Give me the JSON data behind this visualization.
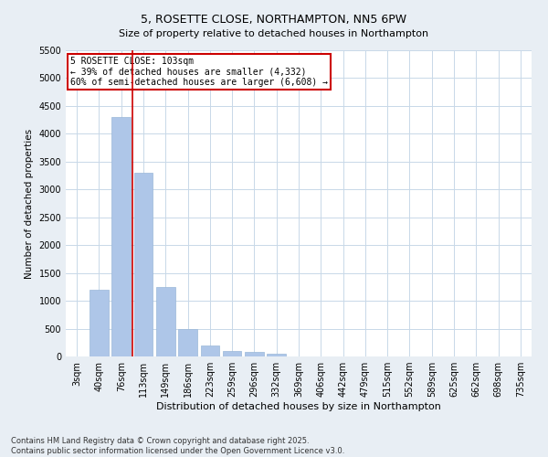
{
  "title": "5, ROSETTE CLOSE, NORTHAMPTON, NN5 6PW",
  "subtitle": "Size of property relative to detached houses in Northampton",
  "xlabel": "Distribution of detached houses by size in Northampton",
  "ylabel": "Number of detached properties",
  "categories": [
    "3sqm",
    "40sqm",
    "76sqm",
    "113sqm",
    "149sqm",
    "186sqm",
    "223sqm",
    "259sqm",
    "296sqm",
    "332sqm",
    "369sqm",
    "406sqm",
    "442sqm",
    "479sqm",
    "515sqm",
    "552sqm",
    "589sqm",
    "625sqm",
    "662sqm",
    "698sqm",
    "735sqm"
  ],
  "values": [
    0,
    1200,
    4300,
    3300,
    1250,
    500,
    200,
    100,
    80,
    50,
    0,
    0,
    0,
    0,
    0,
    0,
    0,
    0,
    0,
    0,
    0
  ],
  "bar_color": "#aec6e8",
  "bar_edge_color": "#9ab8d8",
  "vline_color": "#cc0000",
  "ylim": [
    0,
    5500
  ],
  "yticks": [
    0,
    500,
    1000,
    1500,
    2000,
    2500,
    3000,
    3500,
    4000,
    4500,
    5000,
    5500
  ],
  "annotation_text": "5 ROSETTE CLOSE: 103sqm\n← 39% of detached houses are smaller (4,332)\n60% of semi-detached houses are larger (6,608) →",
  "annotation_box_color": "#cc0000",
  "footer1": "Contains HM Land Registry data © Crown copyright and database right 2025.",
  "footer2": "Contains public sector information licensed under the Open Government Licence v3.0.",
  "bg_color": "#e8eef4",
  "plot_bg_color": "#ffffff",
  "grid_color": "#c8d8e8",
  "title_fontsize": 9,
  "subtitle_fontsize": 8,
  "xlabel_fontsize": 8,
  "ylabel_fontsize": 7.5,
  "tick_fontsize": 7,
  "footer_fontsize": 6
}
